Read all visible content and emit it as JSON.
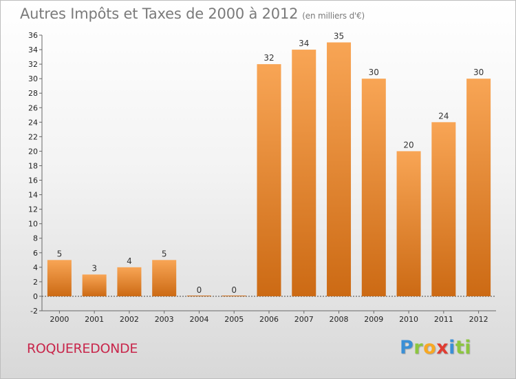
{
  "header": {
    "title": "Autres Impôts et Taxes de 2000 à 2012",
    "subtitle": "(en milliers d'€)"
  },
  "footer": {
    "commune": "ROQUEREDONDE",
    "logo_letters": [
      "P",
      "r",
      "o",
      "x",
      "i",
      "ti"
    ]
  },
  "colors": {
    "bar_top": "#f8a555",
    "bar_bottom": "#cc6a14",
    "commune": "#c8264b",
    "title": "#7a7a7a"
  },
  "chart_data": {
    "type": "bar",
    "title": "Autres Impôts et Taxes de 2000 à 2012",
    "subtitle": "(en milliers d'€)",
    "categories": [
      "2000",
      "2001",
      "2002",
      "2003",
      "2004",
      "2005",
      "2006",
      "2007",
      "2008",
      "2009",
      "2010",
      "2011",
      "2012"
    ],
    "values": [
      5,
      3,
      4,
      5,
      0,
      0,
      32,
      34,
      35,
      30,
      20,
      24,
      30
    ],
    "ylim": [
      -2,
      36
    ],
    "yticks": [
      -2,
      0,
      2,
      4,
      6,
      8,
      10,
      12,
      14,
      16,
      18,
      20,
      22,
      24,
      26,
      28,
      30,
      32,
      34,
      36
    ],
    "grid": false,
    "legend": "none"
  }
}
